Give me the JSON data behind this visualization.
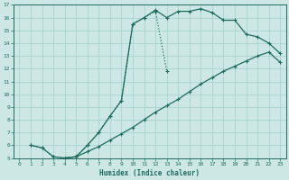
{
  "xlabel": "Humidex (Indice chaleur)",
  "bg_color": "#cde8e4",
  "grid_color": "#aad4ce",
  "line_color": "#1e6b5e",
  "xlim": [
    -0.5,
    23.5
  ],
  "ylim": [
    5,
    17
  ],
  "xticks": [
    0,
    1,
    2,
    3,
    4,
    5,
    6,
    7,
    8,
    9,
    10,
    11,
    12,
    13,
    14,
    15,
    16,
    17,
    18,
    19,
    20,
    21,
    22,
    23
  ],
  "yticks": [
    5,
    6,
    7,
    8,
    9,
    10,
    11,
    12,
    13,
    14,
    15,
    16,
    17
  ],
  "curve1_x": [
    1,
    2,
    3,
    4,
    5,
    6,
    7,
    8,
    9,
    10,
    11,
    12,
    13
  ],
  "curve1_y": [
    6.0,
    5.8,
    5.1,
    5.0,
    5.1,
    6.0,
    7.0,
    8.3,
    9.5,
    15.5,
    16.0,
    16.5,
    11.8
  ],
  "curve2_x": [
    1,
    2,
    3,
    4,
    5,
    6,
    7,
    8,
    9,
    10,
    11,
    12,
    13,
    14,
    15,
    16,
    17,
    18,
    19,
    20,
    21,
    22,
    23
  ],
  "curve2_y": [
    6.0,
    5.8,
    5.1,
    5.0,
    5.1,
    5.5,
    5.9,
    6.4,
    6.9,
    7.4,
    8.0,
    8.6,
    9.1,
    9.6,
    10.2,
    10.8,
    11.3,
    11.8,
    12.2,
    12.6,
    13.0,
    13.3,
    12.5
  ],
  "curve3_x": [
    4,
    5,
    6,
    7,
    8,
    9,
    10,
    11,
    12,
    13,
    14,
    15,
    16,
    17,
    18,
    19,
    20,
    21,
    22,
    23
  ],
  "curve3_y": [
    5.0,
    5.1,
    6.0,
    7.0,
    8.3,
    9.5,
    15.5,
    16.0,
    16.6,
    16.0,
    16.5,
    16.5,
    16.7,
    16.4,
    15.8,
    15.8,
    14.7,
    14.5,
    14.0,
    13.2
  ]
}
